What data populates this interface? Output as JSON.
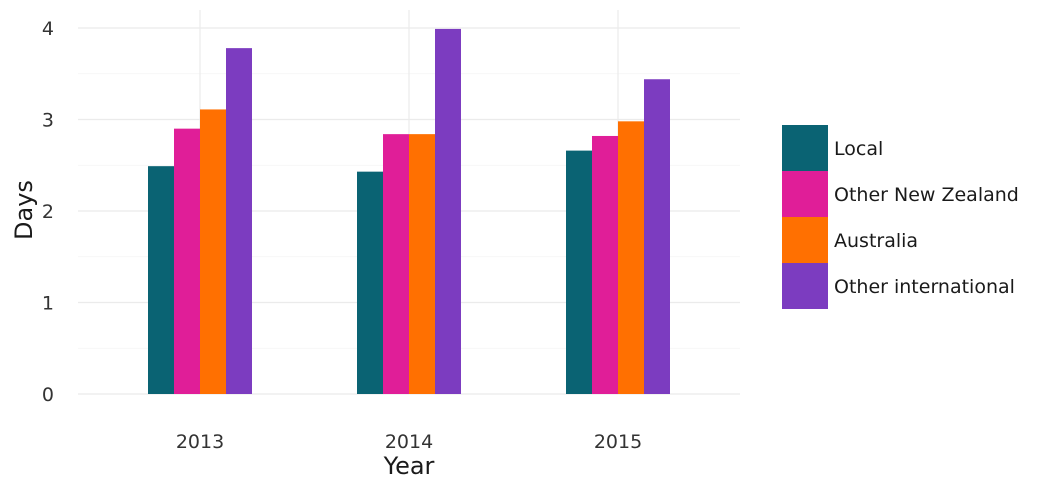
{
  "chart_data": {
    "type": "bar",
    "title": "",
    "xlabel": "Year",
    "ylabel": "Days",
    "categories": [
      "2013",
      "2014",
      "2015"
    ],
    "yticks": [
      "0",
      "1",
      "2",
      "3",
      "4"
    ],
    "ylim": [
      0,
      4.0
    ],
    "grid": true,
    "legend_position": "right",
    "series": [
      {
        "name": "Local",
        "color": "#0a6373",
        "values": [
          2.49,
          2.43,
          2.66
        ]
      },
      {
        "name": "Other New Zealand",
        "color": "#e01e98",
        "values": [
          2.9,
          2.84,
          2.82
        ]
      },
      {
        "name": "Australia",
        "color": "#ff7001",
        "values": [
          3.11,
          2.84,
          2.98
        ]
      },
      {
        "name": "Other international",
        "color": "#7c3cc0",
        "values": [
          3.78,
          3.99,
          3.44
        ]
      }
    ]
  }
}
